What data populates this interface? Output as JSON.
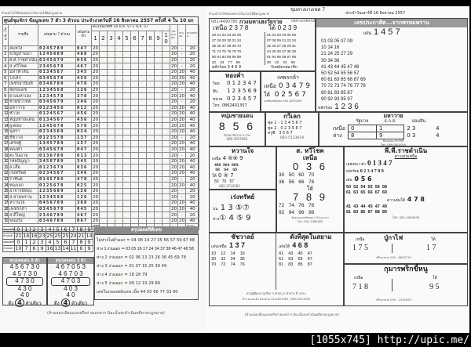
{
  "left": {
    "top_note": "ห้ามนำไปใช้ส่งผลสลากกินรวบให้ผิดกฎหมาย",
    "title": "ศูนย์ชุมจักร ข้อมูลเลข 7 ตัว 3 ตัวบน ประจำงวดวันที่ 16 สิงหาคม 2557 ครั้งที่ 4 ใน 10 ยก",
    "headers": {
      "no": "ลำดับ",
      "name": "รายชื่อ",
      "seven": "เด่นสาม 7 ตัวบน",
      "three": "เด่นสามตัว",
      "periods": "คะแนนงวดที่ 16 มิ.ย. 57-1 พ.ย. 57",
      "period_nums": [
        "1",
        "2",
        "3",
        "4",
        "5",
        "6",
        "7",
        "8",
        "9",
        "10"
      ],
      "score_a": "รวมคะแนน",
      "score_b": "คะแนน",
      "score_total": "คะแนนรวม"
    },
    "rows": [
      [
        "1",
        "สมหวัง",
        "0245789",
        "047",
        "20",
        "20",
        "-",
        "20"
      ],
      [
        "2",
        "ขวัญบ้านนา",
        "1245689",
        "468",
        "20",
        "20",
        "-",
        "20"
      ],
      [
        "3",
        "ศ.ศ.ราชดำเนิน",
        "0345679",
        "056",
        "20",
        "20",
        "-",
        "20"
      ],
      [
        "4",
        "ส.หวีโชค",
        "2345678",
        "467",
        "20",
        "20",
        "-",
        "20"
      ],
      [
        "5",
        "มหาฟ้าลั่น",
        "0134567",
        "345",
        "20",
        "20",
        "20",
        "40"
      ],
      [
        "6",
        "โกเล็ก",
        "0345678",
        "456",
        "20",
        "20",
        "20",
        "40"
      ],
      [
        "7",
        "เพชรอานันท์",
        "0346789",
        "478",
        "20",
        "20",
        "20",
        "40"
      ],
      [
        "8",
        "จิตรธเดช",
        "1234568",
        "126",
        "20",
        "20",
        "-",
        "20"
      ],
      [
        "9",
        "ดวงมหาเฮง",
        "1234578",
        "378",
        "20",
        "20",
        "20",
        "40"
      ],
      [
        "10",
        "ชายนำโชค",
        "0345679",
        "346",
        "20",
        "20",
        "-",
        "20"
      ],
      [
        "11",
        "มหาวาย",
        "0123456",
        "012",
        "20",
        "20",
        "20",
        "40"
      ],
      [
        "12",
        "ซ้ำโย",
        "0124567",
        "456",
        "20",
        "20",
        "20",
        "40"
      ],
      [
        "13",
        "หนุ่มชายแดน",
        "0134567",
        "456",
        "20",
        "20",
        "20",
        "40"
      ],
      [
        "14",
        "ยูงทอง",
        "1245678",
        "578",
        "20",
        "20",
        "20",
        "40"
      ],
      [
        "15",
        "นุสรา",
        "0234569",
        "024",
        "20",
        "20",
        "20",
        "40"
      ],
      [
        "16",
        "ชัชวาล",
        "0123578",
        "137",
        "20",
        "20",
        "-",
        "20"
      ],
      [
        "17",
        "เศรษฐี",
        "1345789",
        "157",
        "20",
        "20",
        "20",
        "40"
      ],
      [
        "18",
        "ทองคำ",
        "0345678",
        "047",
        "20",
        "20",
        "20",
        "40"
      ],
      [
        "19",
        "ตะวันฉาย",
        "0136789",
        "013",
        "20",
        "20",
        "-",
        "20"
      ],
      [
        "20",
        "ไชยปัญญา",
        "3456789",
        "345",
        "20",
        "20",
        "20",
        "40"
      ],
      [
        "21",
        "ส.เสือ",
        "0123679",
        "036",
        "20",
        "20",
        "20",
        "40"
      ],
      [
        "22",
        "เร่งทรัพย์",
        "0234567",
        "346",
        "20",
        "20",
        "20",
        "40"
      ],
      [
        "23",
        "ราชันย์",
        "0145789",
        "478",
        "20",
        "20",
        "-",
        "20"
      ],
      [
        "24",
        "ทองเอก",
        "0125678",
        "025",
        "20",
        "20",
        "20",
        "40"
      ],
      [
        "25",
        "อาจารย์ทอง",
        "1235689",
        "126",
        "20",
        "20",
        "-",
        "20"
      ],
      [
        "26",
        "ส.สามพราน",
        "1234568",
        "126",
        "20",
        "20",
        "-",
        "20"
      ],
      [
        "27",
        "หวานใจ",
        "0456789",
        "368",
        "20",
        "20",
        "20",
        "40"
      ],
      [
        "28",
        "เพชรกล้า",
        "0345678",
        "045",
        "20",
        "20",
        "20",
        "40"
      ],
      [
        "29",
        "ส.ดิ้ใหญ่",
        "2346789",
        "467",
        "20",
        "20",
        "-",
        "20"
      ],
      [
        "30",
        "พนมรุ้ง",
        "0346789",
        "067",
        "20",
        "20",
        "20",
        "40"
      ]
    ],
    "total": "477",
    "total_arrow": "←",
    "total_label": "รวม",
    "digits_label_a": "เลขเด่นตัวที่",
    "digits_label_b": "จำนวนตัว",
    "digits": [
      "0",
      "1",
      "2",
      "3",
      "4",
      "5",
      "6",
      "7",
      "8",
      "9"
    ],
    "counts_a": [
      "21",
      "16",
      "16",
      "23",
      "25",
      "25",
      "25",
      "24",
      "21",
      "14"
    ],
    "counts_b": [
      "10",
      "7",
      "6",
      "9",
      "16",
      "13",
      "14",
      "11",
      "6",
      "9"
    ],
    "banner": "สรุปผลสถิติเลข",
    "box_a": {
      "title": "สรุปเลขเด่น 6 ตัว",
      "lines": [
        "4 5 6 7 3 0",
        "4 5 7 3 0",
        "4 7 3 0",
        "4 3 0",
        "4 0"
      ],
      "final": "4",
      "final_label": "ตัวเดียว",
      "lead": "ดึง"
    },
    "box_b": {
      "title": "สรุปเลขเด่น 3 ตัว",
      "lines": [
        "4 6 7 0 5 3",
        "4 6 7 0 3",
        "4 7 0 3",
        "4 0 3",
        "4 0"
      ],
      "final": "4",
      "final_label": "ตัวเดียว",
      "lead": "ดึง"
    },
    "stats": [
      "ไม่ห่างไม่ต่ำออก = 04 08 14 27 35 56 57 59 67 68",
      "ห่าง 1 ง่ามออก = 03 05 16 17 24 34 37 38 46 47 48 58",
      "ห่าง 2 ง่ามออก = 02 06 13 23 26 36 45 69 78",
      "ห่าง 3 ง่ามออก = 01 07 15 25 39 49",
      "ห่าง 4 ง่ามออก = 18 28 79",
      "ห่าง 5 ง่ามออก = 09 12 19 29 89",
      "เลขในกลองพลังเลข เบิ้ล 44 55 66 77 33 00"
    ],
    "footer": "(ห้ามลอกเลียนแบบหรือถ่ายเอกสาร มิฉะนั้นจะดำเนินคดีตามกฎหมาย)"
  },
  "right": {
    "top_note": "ห้ามนำไปใช้ส่งผลสลากกินรวบให้ผิดกฎหมาย",
    "header": "ชุมทางบางเขต 7",
    "date": "ประจำวันเสาร์ที่ 16 สิงหาคม 2557",
    "kong": {
      "phone_a": "081-4490785",
      "title": "กวงมหาเฮงวัยรวย",
      "phone_b": "089-0298950",
      "upper_label": "เหนือ",
      "upper": "2 3 7 8",
      "lower_label": "ใต้",
      "lower": "0 2 3 9",
      "grid_a": "20 21 23 24 25 26\n27 28 29 30 31 34\n35 36 37 38 39 70\n71 74 75 76 78 79\n80 81 84 85 86 89\n22    33    77    88",
      "grid_b": "01 02 03 04 05 06\n07 08 09 21 23 24\n25 26 27 28 29 31\n34 35 36 37 38 39\n91 94 95 96 97 98\n00    22    33    99",
      "hundreds": "หลักร้อย 3 4 6 9",
      "member": "รับสมัครสมาชิก"
    },
    "prakasit": {
      "title": "เลขประกาศิต...จากพรหมพราน",
      "lead_label": "เด่น",
      "lead": "1 4 5 7",
      "lines": "01 03 05 07 09\n10 14 16\n21 24 25 27 29\n30 34 36\n41 43 44 45 47 49\n50 52 54 55 56 57\n60 61 63 65 66 67 69\n70 72 73 74 76 77 78\n80 81 83 85 87\n90 92 93 95 97",
      "hundreds_label": "หลักร้อย",
      "hundreds": "1 2 3 6"
    },
    "thongkham": {
      "title": "ทองคำ",
      "rows": [
        [
          "ร้อย",
          "0 1 2 3 4 7"
        ],
        [
          "สิบ",
          "1 2 3 5 6 9"
        ],
        [
          "หน่วย",
          "0 2 3 4 5 7"
        ]
      ],
      "phone": "โทร. 0862401357"
    },
    "thepsingkla": {
      "title": "เทพรกล้า",
      "upper_label": "เหนือ",
      "upper": "0 3 4 7 9",
      "lower_label": "ใต้",
      "lower": "0 2 5 6 7",
      "note": "เลขพิเศษติดต่อ 081-6200165"
    },
    "num_chaidaen": {
      "title": "หนุ่มชายแดน",
      "num": "8 5 6",
      "note": "รับสมาชิกงวด 4 งวด",
      "phone": "089-3957993"
    },
    "kawilek": {
      "title": "กวีเลก",
      "rows": [
        "ชุด 1 - 1 3 4 5 6 7",
        "ชุด 2 - 0 2 3 5 6 7",
        "ครูซี   3 5 6 7"
      ],
      "phone": "081-5133619"
    },
    "mahawai": {
      "title": "มหาวาย",
      "cols": [
        "รัฐบาล",
        "ธ.ก.ส.",
        "ออมสิน"
      ],
      "rows": [
        [
          "เหนือ",
          "0",
          "1",
          "2 3",
          "4"
        ],
        [
          "ล่าง",
          "8",
          "9",
          "0 3",
          "4"
        ]
      ],
      "note": "ติดต่อสมาชิกได้ที่",
      "phone": "โทร. 089-0810009"
    },
    "wanjai": {
      "title": "หวานใจ",
      "upper_label": "เหนือ",
      "upper": "4 ⑥⑧ 9",
      "upper_nums": "468  964  869.\n 68    64    69",
      "lower_label": "ใต้",
      "lower": "0 ⑤ 7",
      "lower_nums": "50   70   57",
      "phone": "082-3710562"
    },
    "wichok": {
      "title": "ส. หวีโชค",
      "upper_label": "เหนือ",
      "upper": "0 3 6",
      "upper_nums": "30   50   60   70\n36   56   66   76",
      "lower_label": "ใต้",
      "lower": "7 8 9",
      "lower_nums": "72   74   76   78\n92   94   96   98",
      "note": "ติดตามเลขชนิดชุด 2 ตัวบน-ล่าง",
      "phone": "โทร. 081-5384485"
    },
    "ratchadamnoen": {
      "title": "พี.พี.ราชดำเนิน",
      "sub": "ดาวเด่นเหนือ",
      "five_label": "เอชเด่น 5 ตัว",
      "five": "0 1 3 4 7",
      "hundreds_label": "หลักร้อย",
      "hundreds": "0 2 3 4 7 8 9",
      "lead_label": "เด่น",
      "lead": "0 5 6",
      "nums_a": "50  52  54  55  56  58\n61  63  65  66  67  69",
      "lower_label": "ดาวเด่นใต้",
      "lower": "4 7 8",
      "nums_b": "41  43  44  45  47  49\n81  83  85  87  88  89",
      "phone": "โทร. 081-4965836"
    },
    "rengsap": {
      "title": "เร่งทรัพย์",
      "up_label": "บน",
      "up": "1 3 ⑤⑦",
      "down_label": "ล่าง",
      "down": "① 4 ⑤ 9"
    },
    "chatchawan": {
      "title": "ชัชวาลย์",
      "lead_label": "เด่นเหนือ",
      "lead": "1 3 7",
      "nums": "10    12    14    16\n30    32    34    36\n70    72    74    76"
    },
    "dangsut": {
      "title": "ดังที่สุดในสยาม",
      "lead_label": "เด่นใต้",
      "lead": "4 6 8",
      "nums": "41    43    45    47\n61    63    65    67\n81    83    85    87"
    },
    "shared_note": "ค่วนผู้มีผลงานเลือก 3 ตัวบน 2 ตัวล่าง ปี 2551",
    "shared_phone": "มีวางแผงแล้ว สอบถาม 02-4657962 / 085-5613946",
    "pukafai": {
      "title": "ปู่กาไฟ",
      "upper_label": "เหนือ",
      "upper": "1 7 5",
      "lower_label": "ใต้",
      "lower": "1 7",
      "phone": "ปรึกษาสาย 090 - 8603719"
    },
    "kuman": {
      "title": "กุมารพริกขี้หนู",
      "upper_label": "เหนือ",
      "upper": "7 1 8",
      "lower_label": "ใต้",
      "lower": "9 5",
      "phone": "ปรึกษาสาย 090 - 1032009"
    },
    "footer": "(ห้ามลอกเลียนแบบหรือถ่ายเอกสาร มิฉะนั้นจะดำเนินคดีตามกฎหมาย)"
  },
  "watermark": "[1055x745] http://upic.me/"
}
